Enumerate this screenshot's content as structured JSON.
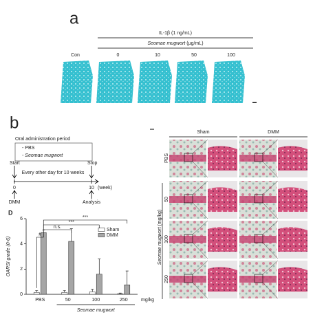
{
  "panel_a": {
    "label": "a",
    "treatment": "IL-1β (1 ng/mL)",
    "concentration_name": "Seomae mugwort",
    "concentration_unit": "(μg/mL)",
    "groups": [
      "Con",
      "0",
      "10",
      "50",
      "100"
    ]
  },
  "panel_b": {
    "label": "b",
    "timeline": {
      "box_title": "Oral administration period",
      "box_items": [
        "- PBS",
        "- Seomae mugwort"
      ],
      "start": "Start",
      "stop": "Stop",
      "schedule": "Every other day for 10 weeks",
      "axis_start": "0",
      "axis_end": "10",
      "axis_unit": "(week)",
      "start_event": "DMM",
      "end_event": "Analysis"
    },
    "histology": {
      "columns": [
        "Sham",
        "DMM"
      ],
      "rows": [
        "PBS",
        "50",
        "100",
        "250"
      ],
      "row_axis_name": "Seomae mugwort",
      "row_axis_unit": "(mg/kg)"
    }
  },
  "chart_data": {
    "type": "bar",
    "panel_label": "D",
    "y_label": "OARSI grade (0-6)",
    "categories": [
      "PBS",
      "50",
      "100",
      "250"
    ],
    "x_unit": "mg/kg",
    "x_group_label": "Seomae mugwort",
    "ylim": [
      0,
      6
    ],
    "yticks": [
      0,
      2,
      4,
      6
    ],
    "series": [
      {
        "name": "Sham",
        "color": "#ffffff",
        "values": [
          0.15,
          0.15,
          0.2,
          0.05
        ],
        "errors": [
          0.15,
          0.15,
          0.2,
          0.05
        ]
      },
      {
        "name": "DMM",
        "color": "#a6a6a6",
        "values": [
          4.9,
          4.2,
          1.6,
          0.75
        ],
        "errors": [
          0.2,
          1.0,
          1.2,
          1.1
        ]
      }
    ],
    "annotations": [
      "#",
      "n.s.",
      "***",
      "***"
    ]
  }
}
